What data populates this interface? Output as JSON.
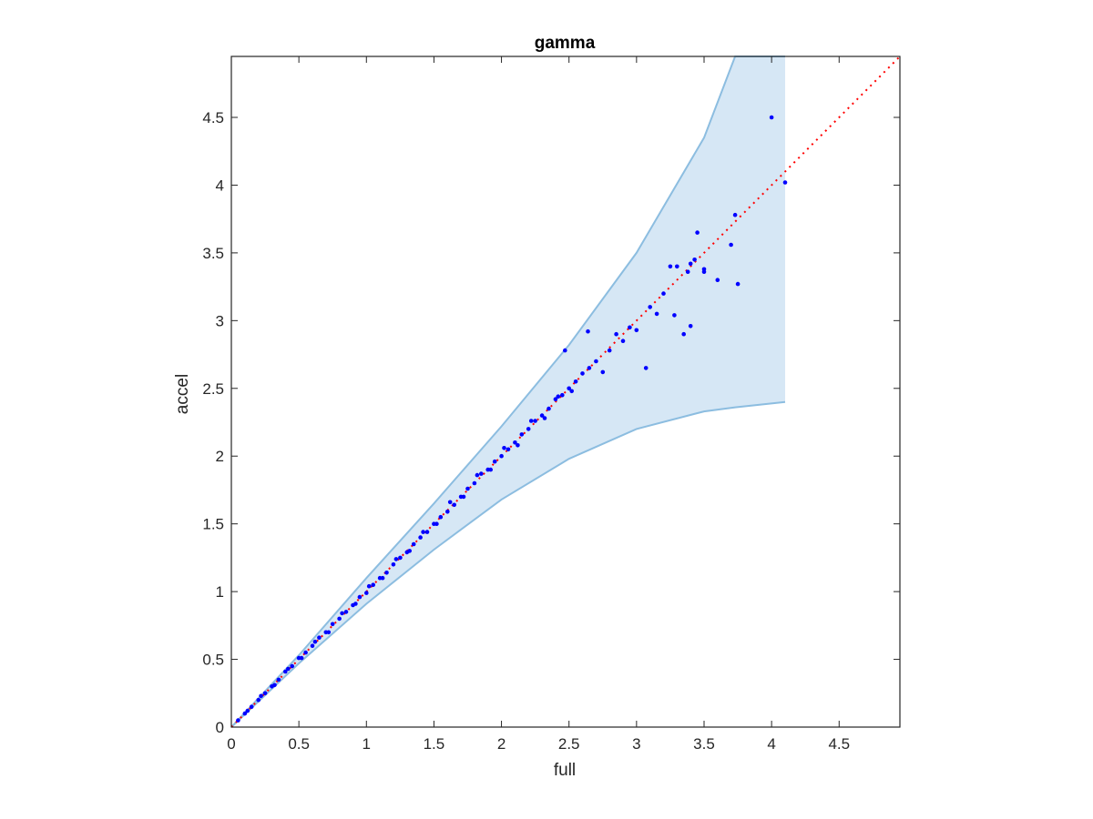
{
  "chart_data": {
    "type": "scatter",
    "title": "gamma",
    "xlabel": "full",
    "ylabel": "accel",
    "xlim": [
      0,
      4.95
    ],
    "ylim": [
      0,
      4.95
    ],
    "xticks": [
      0,
      0.5,
      1,
      1.5,
      2,
      2.5,
      3,
      3.5,
      4,
      4.5
    ],
    "yticks": [
      0,
      0.5,
      1,
      1.5,
      2,
      2.5,
      3,
      3.5,
      4,
      4.5
    ],
    "xtick_labels": [
      "0",
      "0.5",
      "1",
      "1.5",
      "2",
      "2.5",
      "3",
      "3.5",
      "4",
      "4.5"
    ],
    "ytick_labels": [
      "0",
      "0.5",
      "1",
      "1.5",
      "2",
      "2.5",
      "3",
      "3.5",
      "4",
      "4.5"
    ],
    "grid": false,
    "colors": {
      "points": "#0000ff",
      "band_fill": "#d6e7f5",
      "band_edge": "#8cbde0",
      "reference_line": "#ff0000",
      "axes": "#262626"
    },
    "band": {
      "x": [
        0,
        0.5,
        1.0,
        1.5,
        2.0,
        2.5,
        3.0,
        3.5,
        3.73,
        4.1
      ],
      "upper": [
        0,
        0.53,
        1.1,
        1.65,
        2.22,
        2.82,
        3.5,
        4.35,
        4.95,
        4.95
      ],
      "lower": [
        0,
        0.47,
        0.91,
        1.31,
        1.68,
        1.98,
        2.2,
        2.33,
        2.36,
        2.4
      ]
    },
    "reference_line": {
      "x": [
        0,
        4.95
      ],
      "y": [
        0,
        4.95
      ],
      "style": "dotted"
    },
    "series": [
      {
        "x": [
          0.05,
          0.1,
          0.15,
          0.2,
          0.25,
          0.3,
          0.35,
          0.4,
          0.45,
          0.5,
          0.55,
          0.6,
          0.65,
          0.7,
          0.75,
          0.8,
          0.85,
          0.9,
          0.95,
          1.0,
          1.05,
          1.1,
          1.15,
          1.2,
          1.25,
          1.3,
          1.35,
          1.4,
          1.45,
          1.5,
          1.55,
          1.6,
          1.65,
          1.7,
          1.75,
          1.8,
          1.85,
          1.9,
          1.95,
          2.0,
          2.05,
          2.1,
          2.15,
          2.2,
          2.25,
          2.3,
          2.35,
          2.4,
          2.45,
          2.5,
          2.55,
          2.6,
          2.65,
          2.7,
          2.8,
          2.9,
          3.0,
          3.07,
          3.1,
          3.2,
          3.28,
          3.3,
          3.35,
          3.4,
          3.43,
          3.45,
          3.5,
          3.6,
          3.7,
          3.75,
          4.0,
          4.1,
          0.12,
          0.22,
          0.32,
          0.42,
          0.52,
          0.62,
          0.72,
          0.82,
          0.92,
          1.02,
          1.12,
          1.22,
          1.32,
          1.42,
          1.52,
          1.62,
          1.72,
          1.82,
          1.92,
          2.02,
          2.12,
          2.22,
          2.32,
          2.42,
          2.47,
          2.52,
          2.64,
          2.75,
          2.85,
          2.95,
          3.15,
          3.25,
          3.38,
          3.4,
          3.5,
          3.73
        ],
        "y": [
          0.05,
          0.1,
          0.15,
          0.2,
          0.25,
          0.3,
          0.35,
          0.41,
          0.45,
          0.51,
          0.55,
          0.6,
          0.66,
          0.7,
          0.76,
          0.8,
          0.85,
          0.9,
          0.96,
          0.99,
          1.05,
          1.1,
          1.14,
          1.2,
          1.25,
          1.29,
          1.35,
          1.4,
          1.44,
          1.5,
          1.55,
          1.59,
          1.64,
          1.7,
          1.76,
          1.8,
          1.87,
          1.9,
          1.96,
          2.0,
          2.05,
          2.1,
          2.16,
          2.2,
          2.26,
          2.3,
          2.35,
          2.42,
          2.45,
          2.5,
          2.55,
          2.61,
          2.65,
          2.7,
          2.78,
          2.85,
          2.93,
          2.65,
          3.1,
          3.2,
          3.04,
          3.4,
          2.9,
          2.96,
          3.45,
          3.65,
          3.38,
          3.3,
          3.56,
          3.27,
          4.5,
          4.02,
          0.12,
          0.23,
          0.31,
          0.43,
          0.51,
          0.63,
          0.7,
          0.84,
          0.91,
          1.04,
          1.1,
          1.24,
          1.3,
          1.44,
          1.5,
          1.66,
          1.7,
          1.86,
          1.9,
          2.06,
          2.08,
          2.26,
          2.28,
          2.44,
          2.78,
          2.48,
          2.92,
          2.62,
          2.9,
          2.95,
          3.05,
          3.4,
          3.36,
          3.42,
          3.36,
          3.78
        ]
      }
    ]
  }
}
